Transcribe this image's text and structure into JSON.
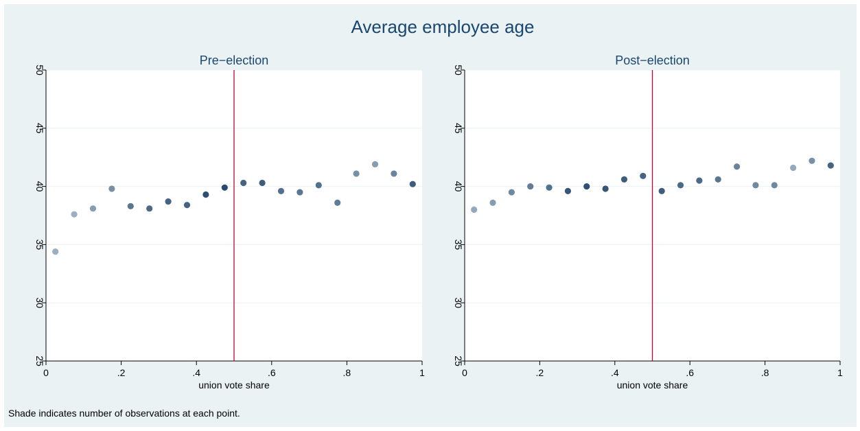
{
  "title": "Average employee age",
  "note": "Shade indicates number of observations at each point.",
  "colors": {
    "background": "#eaf2f3",
    "plot_background": "#ffffff",
    "title": "#1a476f",
    "cutoff_line": "#c10534",
    "grid": "#eaf2f3",
    "shade_light": "#a9bccb",
    "shade_dark": "#1a3d62"
  },
  "chart_data": [
    {
      "type": "scatter",
      "title": "Pre−election",
      "xlabel": "union vote share",
      "ylabel": "",
      "xlim": [
        0,
        1
      ],
      "ylim": [
        25,
        50
      ],
      "x_ticks": [
        0,
        0.2,
        0.4,
        0.6,
        0.8,
        1
      ],
      "x_tick_labels": [
        "0",
        ".2",
        ".4",
        ".6",
        ".8",
        "1"
      ],
      "y_ticks": [
        25,
        30,
        35,
        40,
        45,
        50
      ],
      "y_tick_labels": [
        "25",
        "30",
        "35",
        "40",
        "45",
        "50"
      ],
      "grid": true,
      "cutoff": 0.5,
      "points": [
        {
          "x": 0.025,
          "y": 34.4,
          "shade": 0.1
        },
        {
          "x": 0.075,
          "y": 37.6,
          "shade": 0.1
        },
        {
          "x": 0.125,
          "y": 38.1,
          "shade": 0.25
        },
        {
          "x": 0.175,
          "y": 39.8,
          "shade": 0.35
        },
        {
          "x": 0.225,
          "y": 38.3,
          "shade": 0.55
        },
        {
          "x": 0.275,
          "y": 38.1,
          "shade": 0.65
        },
        {
          "x": 0.325,
          "y": 38.7,
          "shade": 0.7
        },
        {
          "x": 0.375,
          "y": 38.4,
          "shade": 0.7
        },
        {
          "x": 0.425,
          "y": 39.3,
          "shade": 0.85
        },
        {
          "x": 0.475,
          "y": 39.9,
          "shade": 0.9
        },
        {
          "x": 0.525,
          "y": 40.3,
          "shade": 0.7
        },
        {
          "x": 0.575,
          "y": 40.3,
          "shade": 0.75
        },
        {
          "x": 0.625,
          "y": 39.6,
          "shade": 0.6
        },
        {
          "x": 0.675,
          "y": 39.5,
          "shade": 0.55
        },
        {
          "x": 0.725,
          "y": 40.1,
          "shade": 0.6
        },
        {
          "x": 0.775,
          "y": 38.6,
          "shade": 0.5
        },
        {
          "x": 0.825,
          "y": 41.1,
          "shade": 0.35
        },
        {
          "x": 0.875,
          "y": 41.9,
          "shade": 0.25
        },
        {
          "x": 0.925,
          "y": 41.1,
          "shade": 0.45
        },
        {
          "x": 0.975,
          "y": 40.2,
          "shade": 0.75
        }
      ]
    },
    {
      "type": "scatter",
      "title": "Post−election",
      "xlabel": "union vote share",
      "ylabel": "",
      "xlim": [
        0,
        1
      ],
      "ylim": [
        25,
        50
      ],
      "x_ticks": [
        0,
        0.2,
        0.4,
        0.6,
        0.8,
        1
      ],
      "x_tick_labels": [
        "0",
        ".2",
        ".4",
        ".6",
        ".8",
        "1"
      ],
      "y_ticks": [
        25,
        30,
        35,
        40,
        45,
        50
      ],
      "y_tick_labels": [
        "25",
        "30",
        "35",
        "40",
        "45",
        "50"
      ],
      "grid": true,
      "cutoff": 0.5,
      "points": [
        {
          "x": 0.025,
          "y": 38.0,
          "shade": 0.15
        },
        {
          "x": 0.075,
          "y": 38.6,
          "shade": 0.25
        },
        {
          "x": 0.125,
          "y": 39.5,
          "shade": 0.4
        },
        {
          "x": 0.175,
          "y": 40.0,
          "shade": 0.5
        },
        {
          "x": 0.225,
          "y": 39.9,
          "shade": 0.6
        },
        {
          "x": 0.275,
          "y": 39.6,
          "shade": 0.8
        },
        {
          "x": 0.325,
          "y": 40.0,
          "shade": 0.85
        },
        {
          "x": 0.375,
          "y": 39.8,
          "shade": 0.8
        },
        {
          "x": 0.425,
          "y": 40.6,
          "shade": 0.75
        },
        {
          "x": 0.475,
          "y": 40.9,
          "shade": 0.7
        },
        {
          "x": 0.525,
          "y": 39.6,
          "shade": 0.75
        },
        {
          "x": 0.575,
          "y": 40.1,
          "shade": 0.65
        },
        {
          "x": 0.625,
          "y": 40.5,
          "shade": 0.65
        },
        {
          "x": 0.675,
          "y": 40.6,
          "shade": 0.55
        },
        {
          "x": 0.725,
          "y": 41.7,
          "shade": 0.45
        },
        {
          "x": 0.775,
          "y": 40.1,
          "shade": 0.4
        },
        {
          "x": 0.825,
          "y": 40.1,
          "shade": 0.4
        },
        {
          "x": 0.875,
          "y": 41.6,
          "shade": 0.15
        },
        {
          "x": 0.925,
          "y": 42.2,
          "shade": 0.35
        },
        {
          "x": 0.975,
          "y": 41.8,
          "shade": 0.7
        }
      ]
    }
  ]
}
